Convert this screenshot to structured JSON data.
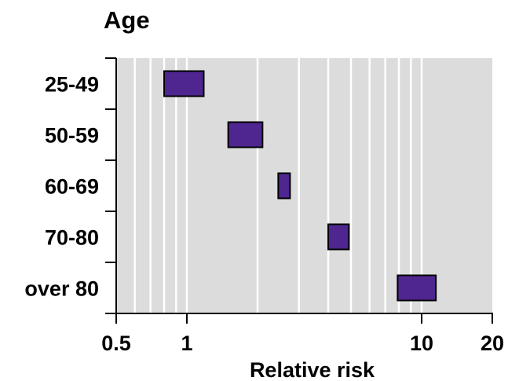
{
  "chart_data": {
    "type": "range-bar",
    "title": "Age",
    "xlabel": "Relative risk",
    "ylabel": "",
    "x_scale": "log",
    "xlim": [
      0.5,
      20
    ],
    "x_ticks": [
      0.5,
      1,
      10,
      20
    ],
    "x_tick_labels": [
      "0.5",
      "1",
      "10",
      "20"
    ],
    "grid_lines": [
      0.6,
      0.7,
      0.8,
      0.9,
      1,
      2,
      3,
      4,
      5,
      6,
      7,
      8,
      9,
      10
    ],
    "categories": [
      "25-49",
      "50-59",
      "60-69",
      "70-80",
      "over 80"
    ],
    "ranges": [
      {
        "category": "25-49",
        "low": 0.8,
        "high": 1.18
      },
      {
        "category": "50-59",
        "low": 1.5,
        "high": 2.1
      },
      {
        "category": "60-69",
        "low": 2.45,
        "high": 2.75
      },
      {
        "category": "70-80",
        "low": 4.0,
        "high": 4.9
      },
      {
        "category": "over 80",
        "low": 7.9,
        "high": 11.5
      }
    ],
    "colors": {
      "bar_fill": "#4f2690",
      "bar_stroke": "#000000",
      "plot_background": "#dcdcdc",
      "grid": "#ffffff"
    },
    "grid": true,
    "legend": "none"
  }
}
